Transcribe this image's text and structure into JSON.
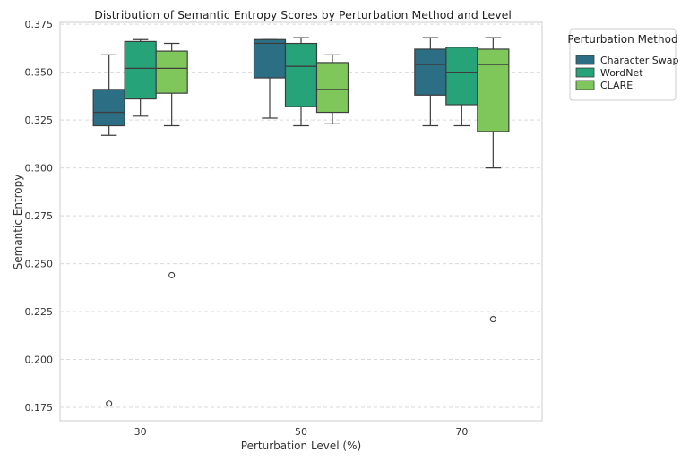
{
  "chart_data": {
    "type": "box",
    "title": "Distribution of Semantic Entropy Scores by Perturbation Method and Level",
    "xlabel": "Perturbation Level (%)",
    "ylabel": "Semantic Entropy",
    "categories": [
      "30",
      "50",
      "70"
    ],
    "ylim": [
      0.168,
      0.376
    ],
    "yticks": [
      "0.175",
      "0.200",
      "0.225",
      "0.250",
      "0.275",
      "0.300",
      "0.325",
      "0.350",
      "0.375"
    ],
    "grid": "horizontal-dashed",
    "legend": {
      "title": "Perturbation Method",
      "placement": "outside-right"
    },
    "series": [
      {
        "name": "Character Swap",
        "color": "#2c6e84",
        "boxes": [
          {
            "whisker_low": 0.317,
            "q1": 0.322,
            "median": 0.329,
            "q3": 0.341,
            "whisker_high": 0.359,
            "outliers": [
              0.177
            ]
          },
          {
            "whisker_low": 0.326,
            "q1": 0.347,
            "median": 0.365,
            "q3": 0.367,
            "whisker_high": 0.367,
            "outliers": []
          },
          {
            "whisker_low": 0.322,
            "q1": 0.338,
            "median": 0.354,
            "q3": 0.362,
            "whisker_high": 0.368,
            "outliers": []
          }
        ]
      },
      {
        "name": "WordNet",
        "color": "#27a37a",
        "boxes": [
          {
            "whisker_low": 0.327,
            "q1": 0.336,
            "median": 0.352,
            "q3": 0.366,
            "whisker_high": 0.367,
            "outliers": []
          },
          {
            "whisker_low": 0.322,
            "q1": 0.332,
            "median": 0.353,
            "q3": 0.365,
            "whisker_high": 0.368,
            "outliers": []
          },
          {
            "whisker_low": 0.322,
            "q1": 0.333,
            "median": 0.35,
            "q3": 0.363,
            "whisker_high": 0.363,
            "outliers": []
          }
        ]
      },
      {
        "name": "CLARE",
        "color": "#7fc75b",
        "boxes": [
          {
            "whisker_low": 0.322,
            "q1": 0.339,
            "median": 0.352,
            "q3": 0.361,
            "whisker_high": 0.365,
            "outliers": [
              0.244
            ]
          },
          {
            "whisker_low": 0.323,
            "q1": 0.329,
            "median": 0.341,
            "q3": 0.355,
            "whisker_high": 0.359,
            "outliers": []
          },
          {
            "whisker_low": 0.3,
            "q1": 0.319,
            "median": 0.354,
            "q3": 0.362,
            "whisker_high": 0.368,
            "outliers": [
              0.221
            ]
          }
        ]
      }
    ]
  }
}
